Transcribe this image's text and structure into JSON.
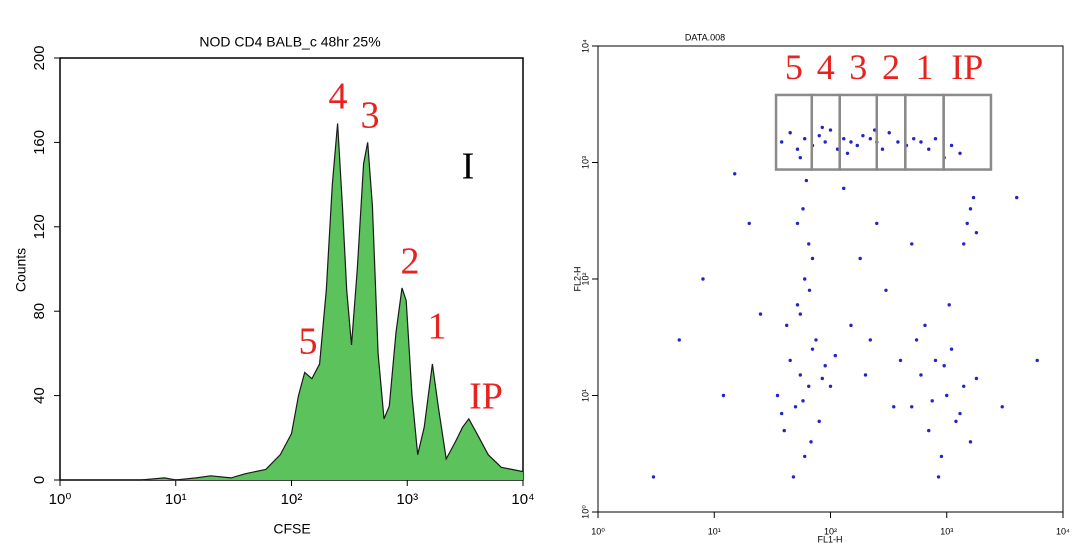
{
  "chart_data": [
    {
      "type": "area",
      "title": "NOD CD4 BALB_c 48hr 25%",
      "x_label": "CFSE",
      "y_label": "Counts",
      "xscale": "log",
      "color": "#5cc25c",
      "line_color": "#1a1a1a",
      "x": [
        1,
        2,
        5,
        8,
        10,
        15,
        20,
        30,
        40,
        60,
        80,
        100,
        115,
        130,
        150,
        175,
        200,
        225,
        250,
        275,
        300,
        330,
        370,
        420,
        455,
        500,
        560,
        630,
        700,
        800,
        900,
        980,
        1100,
        1230,
        1400,
        1650,
        1850,
        2170,
        2600,
        3000,
        3400,
        4000,
        5000,
        6500,
        8000,
        10000
      ],
      "values": [
        0,
        0,
        0,
        1,
        0,
        1,
        2,
        1,
        3,
        5,
        12,
        22,
        40,
        51,
        48,
        55,
        90,
        140,
        169,
        130,
        90,
        64,
        100,
        150,
        160,
        130,
        60,
        29,
        35,
        70,
        91,
        85,
        40,
        12,
        25,
        55,
        35,
        10,
        18,
        25,
        29,
        22,
        12,
        6,
        5,
        4
      ],
      "xlim": [
        1,
        10000
      ],
      "ylim": [
        0,
        200
      ],
      "xticks": [
        {
          "value": 1,
          "label": "10⁰"
        },
        {
          "value": 10,
          "label": "10¹"
        },
        {
          "value": 100,
          "label": "10²"
        },
        {
          "value": 1000,
          "label": "10³"
        },
        {
          "value": 10000,
          "label": "10⁴"
        }
      ],
      "yticks": [
        0,
        40,
        80,
        120,
        160,
        200
      ],
      "annotations": [
        {
          "text": "5",
          "color": "#e8231f"
        },
        {
          "text": "4",
          "color": "#e8231f"
        },
        {
          "text": "3",
          "color": "#e8231f"
        },
        {
          "text": "2",
          "color": "#e8231f"
        },
        {
          "text": "1",
          "color": "#e8231f"
        },
        {
          "text": "IP",
          "color": "#e8231f"
        },
        {
          "text": "I",
          "color": "#000000"
        }
      ]
    },
    {
      "type": "scatter",
      "title": "DATA.008",
      "x_label": "FL1-H",
      "y_label": "FL2-H",
      "xscale": "log",
      "yscale": "log",
      "color": "#2323c8",
      "gate_color": "#8a8a8a",
      "label_color": "#e8231f",
      "xlim": [
        1,
        10000
      ],
      "ylim": [
        1,
        10000
      ],
      "xticks": [
        {
          "value": 1,
          "label": "10⁰"
        },
        {
          "value": 10,
          "label": "10¹"
        },
        {
          "value": 100,
          "label": "10²"
        },
        {
          "value": 1000,
          "label": "10³"
        },
        {
          "value": 10000,
          "label": "10⁴"
        }
      ],
      "yticks": [
        {
          "value": 1,
          "label": "10⁰"
        },
        {
          "value": 10,
          "label": "10¹"
        },
        {
          "value": 100,
          "label": "10²"
        },
        {
          "value": 1000,
          "label": "10³"
        },
        {
          "value": 10000,
          "label": "10⁴"
        }
      ],
      "gates": [
        {
          "label": "5",
          "x": [
            34,
            69
          ],
          "y": [
            870,
            3800
          ]
        },
        {
          "label": "4",
          "x": [
            69,
            120
          ],
          "y": [
            870,
            3800
          ]
        },
        {
          "label": "3",
          "x": [
            120,
            250
          ],
          "y": [
            870,
            3800
          ]
        },
        {
          "label": "2",
          "x": [
            250,
            440
          ],
          "y": [
            870,
            3800
          ]
        },
        {
          "label": "1",
          "x": [
            440,
            940
          ],
          "y": [
            870,
            3800
          ]
        },
        {
          "label": "IP",
          "x": [
            940,
            2400
          ],
          "y": [
            870,
            3800
          ]
        }
      ],
      "x": [
        38,
        45,
        52,
        60,
        70,
        80,
        90,
        100,
        115,
        130,
        150,
        170,
        190,
        220,
        250,
        280,
        320,
        380,
        450,
        520,
        600,
        700,
        800,
        950,
        1100,
        1300,
        55,
        85,
        140,
        240,
        35,
        40,
        45,
        50,
        55,
        60,
        65,
        70,
        80,
        90,
        42,
        48,
        58,
        75,
        100,
        38,
        52,
        68,
        85,
        110,
        500,
        600,
        700,
        800,
        900,
        1000,
        1100,
        1200,
        1400,
        1600,
        650,
        850,
        1050,
        750,
        950,
        1300,
        550,
        1800,
        55,
        60,
        65,
        58,
        62,
        70,
        52,
        66,
        150,
        200,
        300,
        250,
        400,
        180,
        350,
        130,
        500,
        220,
        1500,
        1700,
        1400,
        1600,
        1800,
        5,
        8,
        12,
        20,
        3,
        15,
        25,
        4000,
        6000,
        3000
      ],
      "y": [
        1500,
        1800,
        1300,
        1600,
        1400,
        1700,
        1500,
        1900,
        1300,
        1600,
        1500,
        1400,
        1700,
        1600,
        1500,
        1300,
        1800,
        1500,
        1400,
        1600,
        1500,
        1300,
        1600,
        1100,
        1400,
        1200,
        1100,
        2000,
        1200,
        1900,
        10,
        5,
        20,
        8,
        15,
        3,
        12,
        25,
        6,
        18,
        40,
        2,
        9,
        30,
        12,
        7,
        60,
        4,
        14,
        22,
        8,
        15,
        5,
        20,
        3,
        10,
        25,
        6,
        12,
        4,
        40,
        2,
        60,
        9,
        18,
        7,
        30,
        14,
        50,
        100,
        200,
        400,
        700,
        150,
        300,
        80,
        40,
        15,
        80,
        300,
        20,
        150,
        8,
        600,
        200,
        30,
        300,
        500,
        200,
        400,
        250,
        30,
        100,
        10,
        300,
        2,
        800,
        50,
        500,
        20,
        8
      ]
    }
  ]
}
